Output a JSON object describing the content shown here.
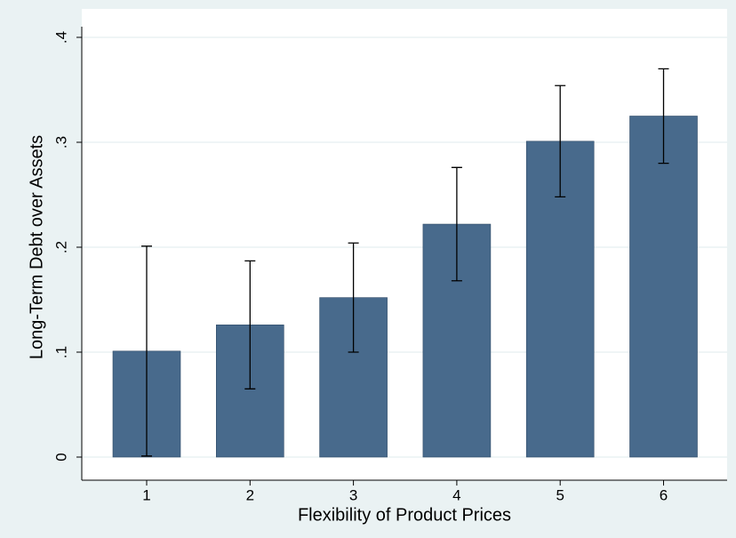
{
  "chart_data": {
    "type": "bar",
    "x_label": "Flexibility of Product Prices",
    "y_label": "Long-Term Debt over Assets",
    "categories": [
      "1",
      "2",
      "3",
      "4",
      "5",
      "6"
    ],
    "values": [
      0.101,
      0.126,
      0.152,
      0.222,
      0.301,
      0.325
    ],
    "error": [
      0.1,
      0.061,
      0.052,
      0.054,
      0.053,
      0.045
    ],
    "color": "#486a8c",
    "ylim": [
      0,
      0.4
    ],
    "yticks": [
      0,
      {
        "value": 0.1,
        "label": ".1"
      },
      {
        "value": 0.2,
        "label": ".2"
      },
      {
        "value": 0.3,
        "label": ".3"
      },
      {
        "value": 0.4,
        "label": ".4"
      }
    ],
    "grid": true
  }
}
